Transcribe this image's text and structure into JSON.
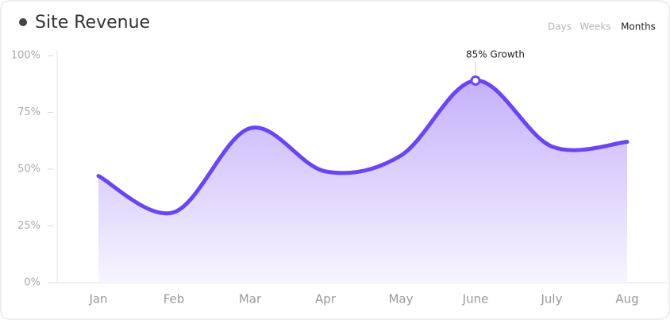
{
  "chart_data": {
    "type": "area",
    "title": "Site Revenue",
    "controls": {
      "options": [
        "Days",
        "Weeks",
        "Months"
      ],
      "selected": "Months"
    },
    "categories": [
      "Jan",
      "Feb",
      "Mar",
      "Apr",
      "May",
      "June",
      "July",
      "Aug"
    ],
    "series": [
      {
        "name": "Revenue",
        "color": "#6b45f2",
        "values": [
          47,
          31,
          68,
          49,
          56,
          89,
          60,
          62
        ]
      }
    ],
    "ylim": [
      0,
      100
    ],
    "yticks": [
      {
        "value": 0,
        "label": "0%"
      },
      {
        "value": 25,
        "label": "25%"
      },
      {
        "value": 50,
        "label": "50%"
      },
      {
        "value": 75,
        "label": "75%"
      },
      {
        "value": 100,
        "label": "100%"
      }
    ],
    "annotation": {
      "text": "85% Growth",
      "category": "June"
    },
    "grid": false
  }
}
